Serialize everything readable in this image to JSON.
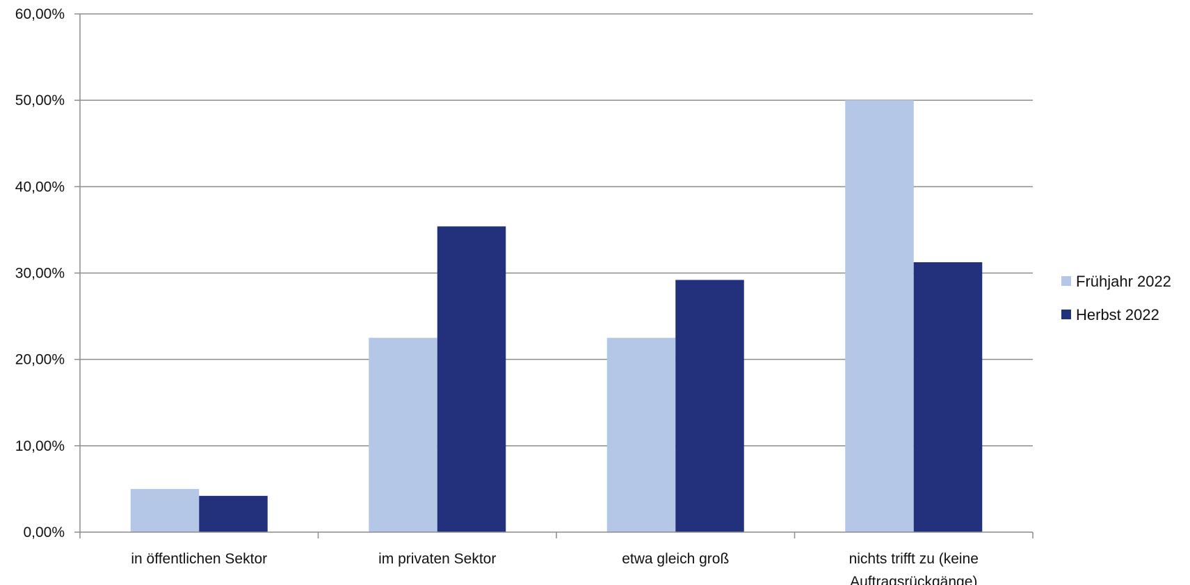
{
  "chart_data": {
    "type": "bar",
    "categories": [
      "in öffentlichen Sektor",
      "im privaten Sektor",
      "etwa gleich groß",
      "nichts trifft zu (keine Auftragsrückgänge)"
    ],
    "category_lines": [
      [
        "in öffentlichen Sektor"
      ],
      [
        "im privaten Sektor"
      ],
      [
        "etwa gleich groß"
      ],
      [
        "nichts trifft zu (keine",
        "Auftragsrückgänge)"
      ]
    ],
    "series": [
      {
        "name": "Frühjahr 2022",
        "color": "#b4c7e7",
        "values": [
          5.0,
          22.5,
          22.5,
          50.0
        ]
      },
      {
        "name": "Herbst 2022",
        "color": "#23317c",
        "values": [
          4.2,
          35.4,
          29.2,
          31.25
        ]
      }
    ],
    "title": "",
    "xlabel": "",
    "ylabel": "",
    "ylim": [
      0,
      60
    ],
    "yticks": [
      0,
      10,
      20,
      30,
      40,
      50,
      60
    ],
    "ytick_labels": [
      "0,00%",
      "10,00%",
      "20,00%",
      "30,00%",
      "40,00%",
      "50,00%",
      "60,00%"
    ],
    "grid": true,
    "legend_position": "right"
  }
}
